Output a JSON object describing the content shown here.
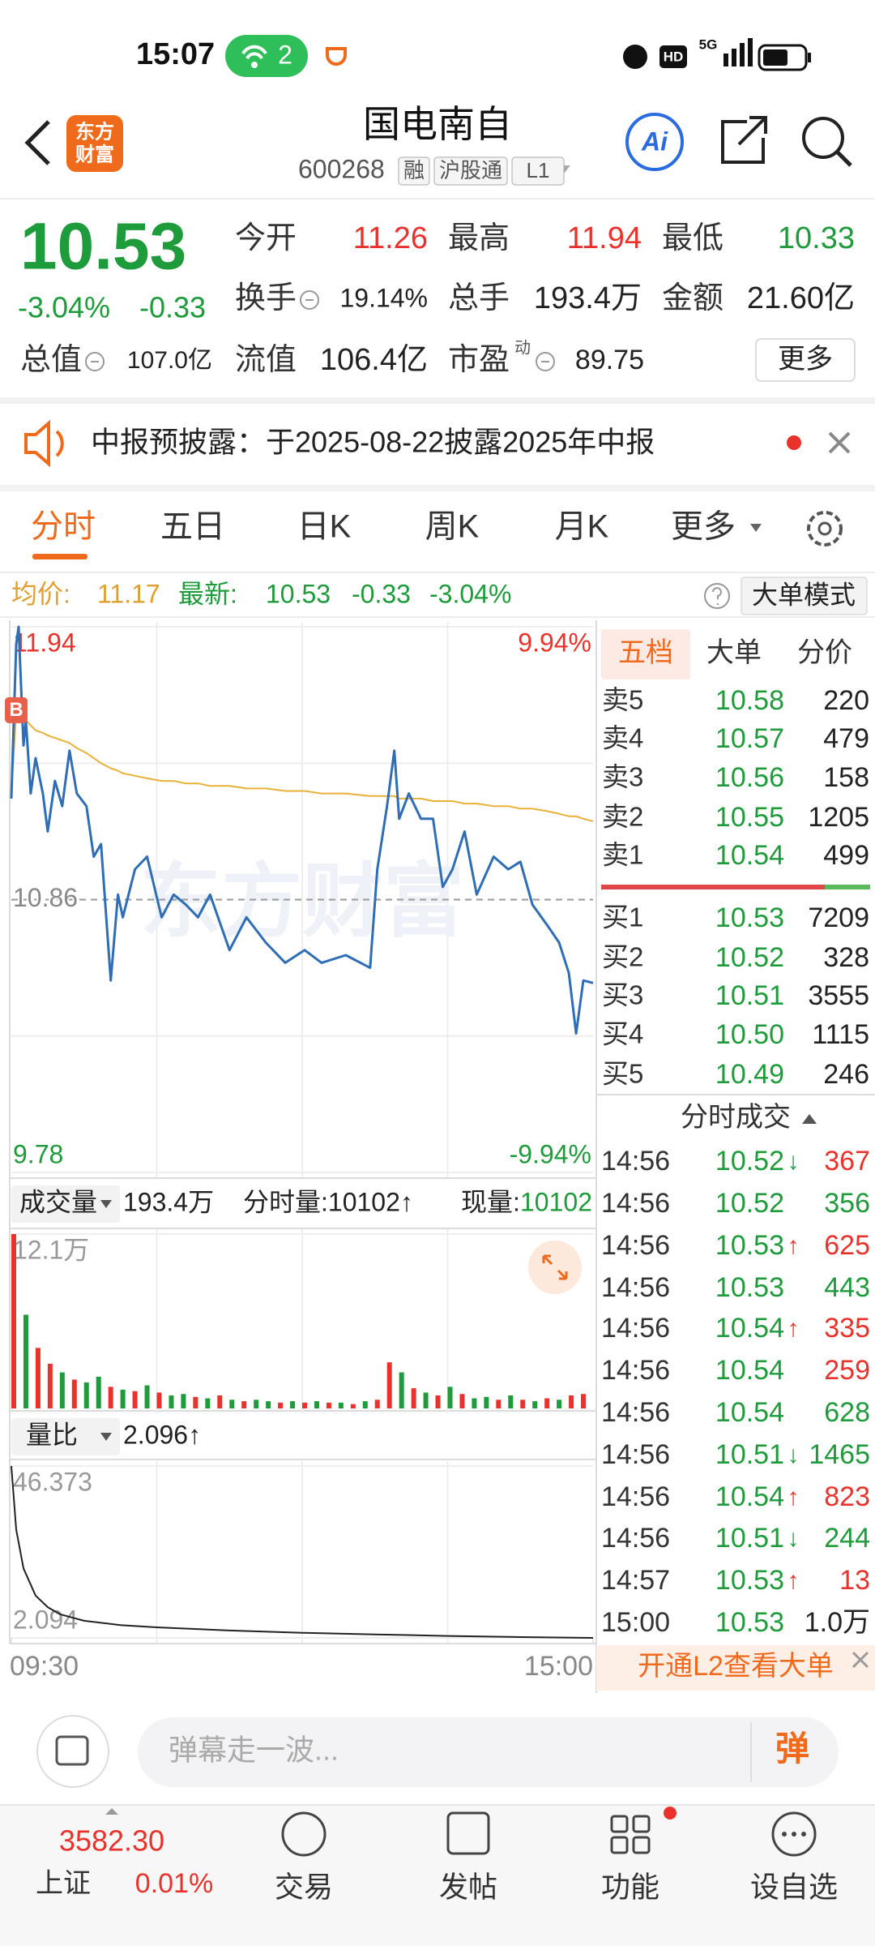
{
  "status_bar": {
    "time": "15:07",
    "hotspot_count": "2",
    "hd": "HD",
    "network": "5G"
  },
  "header": {
    "logo": [
      "东方",
      "财富"
    ],
    "name": "国电南自",
    "code": "600268",
    "tags": [
      "融",
      "沪股通",
      "L1"
    ],
    "ai": "Ai"
  },
  "quote": {
    "price": "10.53",
    "change_pct": "-3.04%",
    "change": "-0.33",
    "fields": [
      {
        "label": "今开",
        "value": "11.26",
        "tone": "up"
      },
      {
        "label": "最高",
        "value": "11.94",
        "tone": "up"
      },
      {
        "label": "最低",
        "value": "10.33",
        "tone": "down"
      },
      {
        "label": "换手",
        "value": "19.14%",
        "tone": "flat",
        "info": true
      },
      {
        "label": "总手",
        "value": "193.4万",
        "tone": "flat"
      },
      {
        "label": "金额",
        "value": "21.60亿",
        "tone": "flat"
      },
      {
        "label": "总值",
        "value": "107.0亿",
        "tone": "flat",
        "info": true
      },
      {
        "label": "流值",
        "value": "106.4亿",
        "tone": "flat"
      },
      {
        "label": "市盈",
        "sup": "动",
        "value": "89.75",
        "tone": "flat",
        "info": true
      }
    ],
    "more": "更多"
  },
  "notice": {
    "text": "中报预披露：于2025-08-22披露2025年中报"
  },
  "tabs": {
    "items": [
      "分时",
      "五日",
      "日K",
      "周K",
      "月K",
      "更多"
    ],
    "active": 0
  },
  "info_bar": {
    "avg_label": "均价:",
    "avg": "11.17",
    "last_label": "最新:",
    "last": "10.53",
    "change": "-0.33",
    "change_pct": "-3.04%",
    "mode": "大单模式"
  },
  "chart_data": [
    {
      "type": "line",
      "watermark": "东方财富",
      "xlim": [
        0,
        240
      ],
      "ylim": [
        9.78,
        11.94
      ],
      "yticks": [
        11.94,
        10.86,
        9.78
      ],
      "ytick_colors": [
        "#e8322b",
        "#888888",
        "#1e9b3a"
      ],
      "y2lim": [
        -9.94,
        9.94
      ],
      "y2ticks": [
        {
          "value": 9.94,
          "label": "9.94%"
        },
        {
          "value": -9.94,
          "label": "-9.94%"
        }
      ],
      "y2tick_colors": [
        "#e8322b",
        "#1e9b3a"
      ],
      "x": [
        0,
        2,
        3,
        5,
        6,
        8,
        10,
        13,
        15,
        18,
        21,
        24,
        27,
        31,
        34,
        37,
        41,
        44,
        46,
        51,
        56,
        62,
        67,
        72,
        77,
        82,
        90,
        97,
        105,
        113,
        121,
        128,
        138,
        148,
        151,
        155,
        158,
        160,
        164,
        169,
        174,
        178,
        182,
        187,
        192,
        199,
        205,
        210,
        215,
        221,
        226,
        230,
        233,
        236,
        240
      ],
      "series": [
        {
          "color": "#e8b23a",
          "width": 2,
          "values": [
            11.28,
            11.6,
            11.62,
            11.58,
            11.57,
            11.55,
            11.53,
            11.52,
            11.51,
            11.5,
            11.49,
            11.48,
            11.46,
            11.44,
            11.42,
            11.4,
            11.38,
            11.37,
            11.36,
            11.35,
            11.34,
            11.33,
            11.33,
            11.32,
            11.32,
            11.31,
            11.31,
            11.3,
            11.3,
            11.29,
            11.29,
            11.28,
            11.28,
            11.27,
            11.27,
            11.27,
            11.27,
            11.26,
            11.26,
            11.26,
            11.25,
            11.25,
            11.25,
            11.24,
            11.24,
            11.23,
            11.23,
            11.22,
            11.22,
            11.21,
            11.2,
            11.19,
            11.19,
            11.18,
            11.17
          ]
        },
        {
          "color": "#2f6db5",
          "width": 3,
          "values": [
            11.26,
            11.87,
            11.94,
            11.47,
            11.57,
            11.28,
            11.42,
            11.28,
            11.13,
            11.33,
            11.23,
            11.45,
            11.28,
            11.23,
            11.03,
            11.08,
            10.54,
            10.88,
            10.79,
            10.98,
            11.03,
            10.79,
            10.88,
            10.84,
            10.79,
            10.88,
            10.66,
            10.79,
            10.69,
            10.61,
            10.66,
            10.61,
            10.64,
            10.59,
            10.98,
            11.23,
            11.45,
            11.18,
            11.28,
            11.18,
            11.18,
            10.91,
            10.98,
            11.13,
            10.88,
            11.03,
            10.98,
            11.01,
            10.84,
            10.76,
            10.69,
            10.57,
            10.33,
            10.54,
            10.53
          ]
        }
      ],
      "markers": [
        {
          "label": "B",
          "x": 0,
          "value": 11.61,
          "color": "#e8604a"
        }
      ]
    },
    {
      "type": "bar",
      "xlim": [
        0,
        240
      ],
      "ylim": [
        0,
        12.1
      ],
      "yticks": [
        {
          "value": 12.1,
          "label": "12.1万"
        }
      ],
      "ytick_colors": [
        "#999999"
      ],
      "x": [
        0,
        5,
        10,
        15,
        20,
        25,
        30,
        35,
        40,
        45,
        50,
        55,
        60,
        65,
        70,
        75,
        80,
        85,
        90,
        95,
        100,
        105,
        110,
        115,
        120,
        125,
        130,
        135,
        140,
        145,
        150,
        155,
        160,
        165,
        170,
        175,
        180,
        185,
        190,
        195,
        200,
        205,
        210,
        215,
        220,
        225,
        230,
        235
      ],
      "values": [
        12.1,
        6.5,
        4.2,
        3.1,
        2.5,
        2.0,
        1.8,
        2.2,
        1.5,
        1.3,
        1.2,
        1.6,
        1.1,
        0.9,
        1.0,
        0.8,
        0.7,
        0.9,
        0.6,
        0.5,
        0.6,
        0.5,
        0.4,
        0.5,
        0.4,
        0.5,
        0.4,
        0.4,
        0.3,
        0.5,
        0.6,
        3.2,
        2.5,
        1.4,
        1.1,
        0.9,
        1.5,
        1.0,
        0.7,
        0.8,
        0.6,
        0.9,
        0.6,
        0.5,
        0.7,
        0.6,
        0.9,
        1.0
      ],
      "bar_colors": [
        "up",
        "down",
        "up",
        "up",
        "down",
        "up",
        "down",
        "down",
        "up",
        "down",
        "up",
        "down",
        "up",
        "down",
        "down",
        "up",
        "down",
        "up",
        "down",
        "up",
        "down",
        "down",
        "up",
        "down",
        "up",
        "down",
        "up",
        "down",
        "up",
        "down",
        "up",
        "up",
        "down",
        "up",
        "down",
        "up",
        "down",
        "up",
        "down",
        "down",
        "up",
        "down",
        "up",
        "down",
        "up",
        "down",
        "up",
        "up"
      ],
      "palette": {
        "up": "#e8322b",
        "down": "#1e9b3a"
      }
    },
    {
      "type": "line",
      "xlim": [
        0,
        240
      ],
      "ylim": [
        2.094,
        46.373
      ],
      "yticks": [
        46.373,
        2.094
      ],
      "ytick_colors": [
        "#999999",
        "#999999"
      ],
      "xticks": [
        {
          "value": 0,
          "label": "09:30"
        },
        {
          "value": 240,
          "label": "15:00"
        }
      ],
      "x": [
        0,
        2,
        5,
        10,
        15,
        20,
        30,
        45,
        60,
        90,
        120,
        150,
        180,
        210,
        240
      ],
      "series": [
        {
          "color": "#222222",
          "width": 2,
          "values": [
            46.373,
            30,
            20,
            13,
            10,
            8.2,
            6.5,
            5.4,
            4.8,
            4,
            3.4,
            3,
            2.6,
            2.3,
            2.096
          ]
        }
      ]
    }
  ],
  "volume_header": {
    "label": "成交量",
    "total": "193.4万",
    "minute_volume": "分时量:10102↑",
    "current_label": "现量:",
    "current": "10102"
  },
  "ratio_header": {
    "label": "量比",
    "value": "2.096↑"
  },
  "order_book": {
    "tabs": [
      "五档",
      "大单",
      "分价"
    ],
    "asks": [
      {
        "label": "卖5",
        "price": "10.58",
        "volume": "220"
      },
      {
        "label": "卖4",
        "price": "10.57",
        "volume": "479"
      },
      {
        "label": "卖3",
        "price": "10.56",
        "volume": "158"
      },
      {
        "label": "卖2",
        "price": "10.55",
        "volume": "1205"
      },
      {
        "label": "卖1",
        "price": "10.54",
        "volume": "499"
      }
    ],
    "bids": [
      {
        "label": "买1",
        "price": "10.53",
        "volume": "7209"
      },
      {
        "label": "买2",
        "price": "10.52",
        "volume": "328"
      },
      {
        "label": "买3",
        "price": "10.51",
        "volume": "3555"
      },
      {
        "label": "买4",
        "price": "10.50",
        "volume": "1115"
      },
      {
        "label": "买5",
        "price": "10.49",
        "volume": "246"
      }
    ]
  },
  "trades": {
    "title": "分时成交",
    "rows": [
      {
        "time": "14:56",
        "price": "10.52",
        "arrow": "↓",
        "volume": "367",
        "tone": "up"
      },
      {
        "time": "14:56",
        "price": "10.52",
        "volume": "356",
        "tone": "down"
      },
      {
        "time": "14:56",
        "price": "10.53",
        "arrow": "↑",
        "volume": "625",
        "tone": "up"
      },
      {
        "time": "14:56",
        "price": "10.53",
        "volume": "443",
        "tone": "down"
      },
      {
        "time": "14:56",
        "price": "10.54",
        "arrow": "↑",
        "volume": "335",
        "tone": "up"
      },
      {
        "time": "14:56",
        "price": "10.54",
        "volume": "259",
        "tone": "up"
      },
      {
        "time": "14:56",
        "price": "10.54",
        "volume": "628",
        "tone": "down"
      },
      {
        "time": "14:56",
        "price": "10.51",
        "arrow": "↓",
        "volume": "1465",
        "tone": "down"
      },
      {
        "time": "14:56",
        "price": "10.54",
        "arrow": "↑",
        "volume": "823",
        "tone": "up"
      },
      {
        "time": "14:56",
        "price": "10.51",
        "arrow": "↓",
        "volume": "244",
        "tone": "down"
      },
      {
        "time": "14:57",
        "price": "10.53",
        "arrow": "↑",
        "volume": "13",
        "tone": "up"
      },
      {
        "time": "15:00",
        "price": "10.53",
        "volume": "1.0万",
        "tone": "flat"
      }
    ],
    "promo": "开通L2查看大单"
  },
  "comment_bar": {
    "placeholder": "弹幕走一波...",
    "button": "弹"
  },
  "bottom_nav": {
    "index_value": "3582.30",
    "index_name": "上证",
    "index_change": "0.01%",
    "items": [
      "交易",
      "发帖",
      "功能",
      "设自选"
    ]
  }
}
